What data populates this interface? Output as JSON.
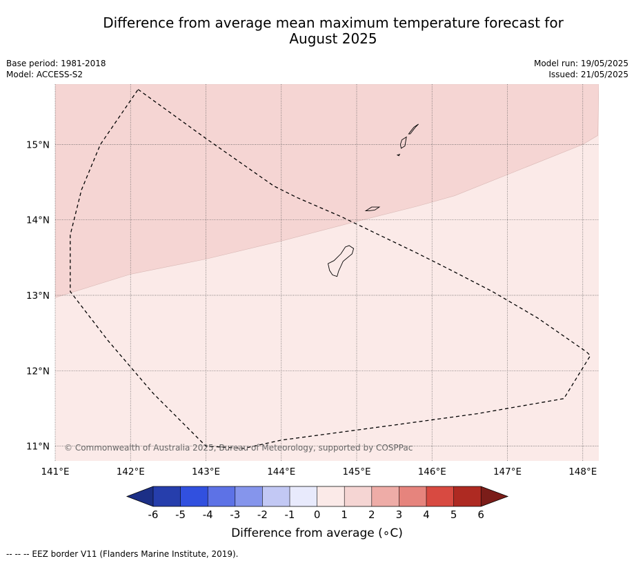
{
  "title": {
    "line1": "Difference from average mean maximum temperature forecast for",
    "line2": "August 2025"
  },
  "meta": {
    "base_period": "Base period: 1981-2018",
    "model": "Model: ACCESS-S2",
    "model_run": "Model run: 19/05/2025",
    "issued": "Issued: 21/05/2025"
  },
  "map": {
    "lon_range": [
      141.0,
      148.2
    ],
    "lat_range": [
      10.8,
      15.8
    ],
    "lon_ticks": [
      141,
      142,
      143,
      144,
      145,
      146,
      147,
      148
    ],
    "lon_tick_labels": [
      "141°E",
      "142°E",
      "143°E",
      "144°E",
      "145°E",
      "146°E",
      "147°E",
      "148°E"
    ],
    "lat_ticks": [
      11,
      12,
      13,
      14,
      15
    ],
    "lat_tick_labels": [
      "11°N",
      "12°N",
      "13°N",
      "14°N",
      "15°N"
    ],
    "grid": true,
    "regions": [
      {
        "category": "1 to 2",
        "color": "#f5d5d3",
        "location": "north-west of boundary"
      },
      {
        "category": "0 to 1",
        "color": "#fbeae8",
        "location": "south-east of boundary"
      }
    ],
    "category_boundary": [
      [
        141.0,
        12.97
      ],
      [
        142.0,
        13.28
      ],
      [
        143.0,
        13.48
      ],
      [
        144.0,
        13.72
      ],
      [
        145.0,
        13.98
      ],
      [
        145.8,
        14.18
      ],
      [
        146.3,
        14.32
      ],
      [
        147.0,
        14.6
      ],
      [
        148.0,
        15.0
      ],
      [
        148.2,
        15.12
      ]
    ],
    "eez_border": [
      [
        142.1,
        15.73
      ],
      [
        143.0,
        15.08
      ],
      [
        143.9,
        14.45
      ],
      [
        144.2,
        14.3
      ],
      [
        144.8,
        14.04
      ],
      [
        145.3,
        13.8
      ],
      [
        145.8,
        13.56
      ],
      [
        146.2,
        13.36
      ],
      [
        146.8,
        13.05
      ],
      [
        147.4,
        12.7
      ],
      [
        148.05,
        12.25
      ],
      [
        148.1,
        12.2
      ],
      [
        147.75,
        11.63
      ],
      [
        146.6,
        11.43
      ],
      [
        145.5,
        11.28
      ],
      [
        144.0,
        11.08
      ],
      [
        143.5,
        10.97
      ],
      [
        143.0,
        11.0
      ],
      [
        142.3,
        11.7
      ],
      [
        141.7,
        12.4
      ],
      [
        141.2,
        13.05
      ],
      [
        141.2,
        13.8
      ],
      [
        141.35,
        14.4
      ],
      [
        141.6,
        15.0
      ],
      [
        142.1,
        15.73
      ]
    ],
    "islands": [
      {
        "name": "Guam",
        "coords": [
          [
            144.9,
            13.66
          ],
          [
            144.96,
            13.62
          ],
          [
            144.94,
            13.55
          ],
          [
            144.82,
            13.45
          ],
          [
            144.76,
            13.32
          ],
          [
            144.74,
            13.25
          ],
          [
            144.68,
            13.27
          ],
          [
            144.64,
            13.33
          ],
          [
            144.62,
            13.42
          ],
          [
            144.7,
            13.46
          ],
          [
            144.79,
            13.55
          ],
          [
            144.85,
            13.64
          ]
        ]
      },
      {
        "name": "Rota",
        "coords": [
          [
            145.12,
            14.12
          ],
          [
            145.2,
            14.17
          ],
          [
            145.3,
            14.17
          ],
          [
            145.24,
            14.13
          ],
          [
            145.16,
            14.12
          ]
        ]
      },
      {
        "name": "Tinian",
        "coords": [
          [
            145.6,
            15.06
          ],
          [
            145.66,
            15.1
          ],
          [
            145.64,
            14.98
          ],
          [
            145.59,
            14.95
          ],
          [
            145.58,
            15.0
          ]
        ]
      },
      {
        "name": "Saipan",
        "coords": [
          [
            145.71,
            15.14
          ],
          [
            145.78,
            15.23
          ],
          [
            145.82,
            15.27
          ],
          [
            145.76,
            15.23
          ],
          [
            145.72,
            15.18
          ],
          [
            145.69,
            15.14
          ]
        ]
      },
      {
        "name": "Aguijan",
        "coords": [
          [
            145.54,
            14.86
          ],
          [
            145.57,
            14.87
          ],
          [
            145.56,
            14.85
          ]
        ]
      }
    ],
    "copyright": "© Commonwealth of Australia 2025, Bureau of Meteorology, supported by COSPPac"
  },
  "colorbar": {
    "label": "Difference from average (∘C)",
    "tick_labels": [
      "-6",
      "-5",
      "-4",
      "-3",
      "-2",
      "-1",
      "0",
      "1",
      "2",
      "3",
      "4",
      "5",
      "6"
    ],
    "colors": [
      "#263eac",
      "#3150df",
      "#5d72e6",
      "#8595ec",
      "#c2c8f4",
      "#e8eafc",
      "#fbeae8",
      "#f5d5d3",
      "#eeaca7",
      "#e6847d",
      "#d84a41",
      "#ae2a22"
    ],
    "extend_min_color": "#1c2f86",
    "extend_max_color": "#7b1d19"
  },
  "footnote": "--  --  -- EEZ border V11 (Flanders Marine Institute, 2019)."
}
